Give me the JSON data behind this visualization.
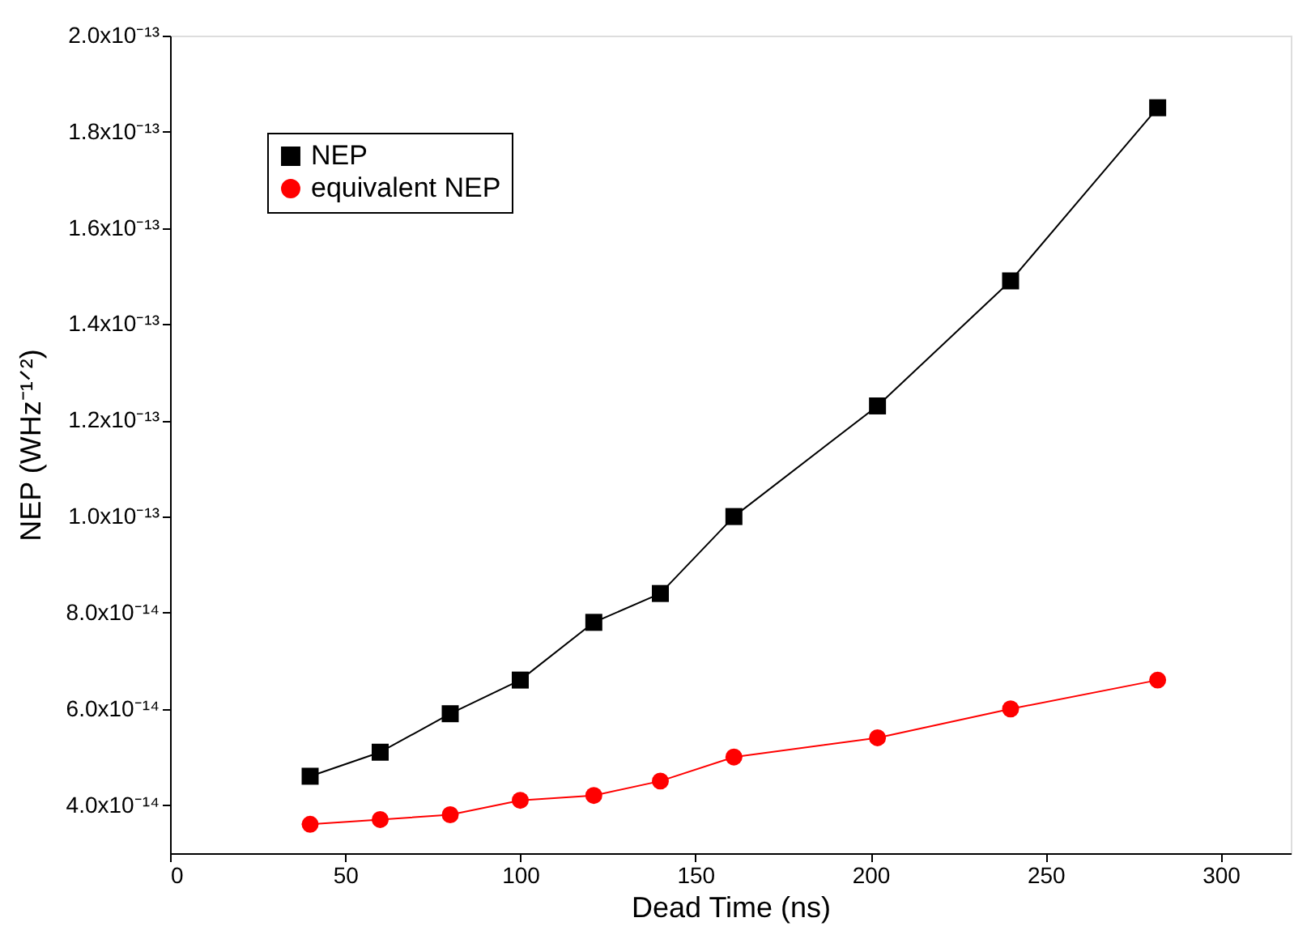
{
  "chart_data": {
    "type": "line",
    "xlabel": "Dead Time (ns)",
    "ylabel": "NEP (WHz⁻¹ᐟ²)",
    "x": [
      40,
      60,
      80,
      100,
      121,
      140,
      161,
      202,
      240,
      282
    ],
    "series": [
      {
        "name": "NEP",
        "color": "#000000",
        "marker": "square",
        "values": [
          4.6e-14,
          5.1e-14,
          5.9e-14,
          6.6e-14,
          7.8e-14,
          8.4e-14,
          1e-13,
          1.23e-13,
          1.49e-13,
          1.85e-13
        ]
      },
      {
        "name": "equivalent NEP",
        "color": "#ff0000",
        "marker": "circle",
        "values": [
          3.6e-14,
          3.7e-14,
          3.8e-14,
          4.1e-14,
          4.2e-14,
          4.5e-14,
          5e-14,
          5.4e-14,
          6e-14,
          6.6e-14
        ]
      }
    ],
    "xlim": [
      0,
      320
    ],
    "xticks": [
      0,
      50,
      100,
      150,
      200,
      250,
      300
    ],
    "ylim": [
      3e-14,
      2e-13
    ],
    "yticks": [
      {
        "value": 4e-14,
        "label": "4.0x10⁻¹⁴"
      },
      {
        "value": 6e-14,
        "label": "6.0x10⁻¹⁴"
      },
      {
        "value": 8e-14,
        "label": "8.0x10⁻¹⁴"
      },
      {
        "value": 1e-13,
        "label": "1.0x10⁻¹³"
      },
      {
        "value": 1.2e-13,
        "label": "1.2x10⁻¹³"
      },
      {
        "value": 1.4e-13,
        "label": "1.4x10⁻¹³"
      },
      {
        "value": 1.6e-13,
        "label": "1.6x10⁻¹³"
      },
      {
        "value": 1.8e-13,
        "label": "1.8x10⁻¹³"
      },
      {
        "value": 2e-13,
        "label": "2.0x10⁻¹³"
      }
    ],
    "grid": false,
    "legend": "top left",
    "line_style": "solid"
  }
}
